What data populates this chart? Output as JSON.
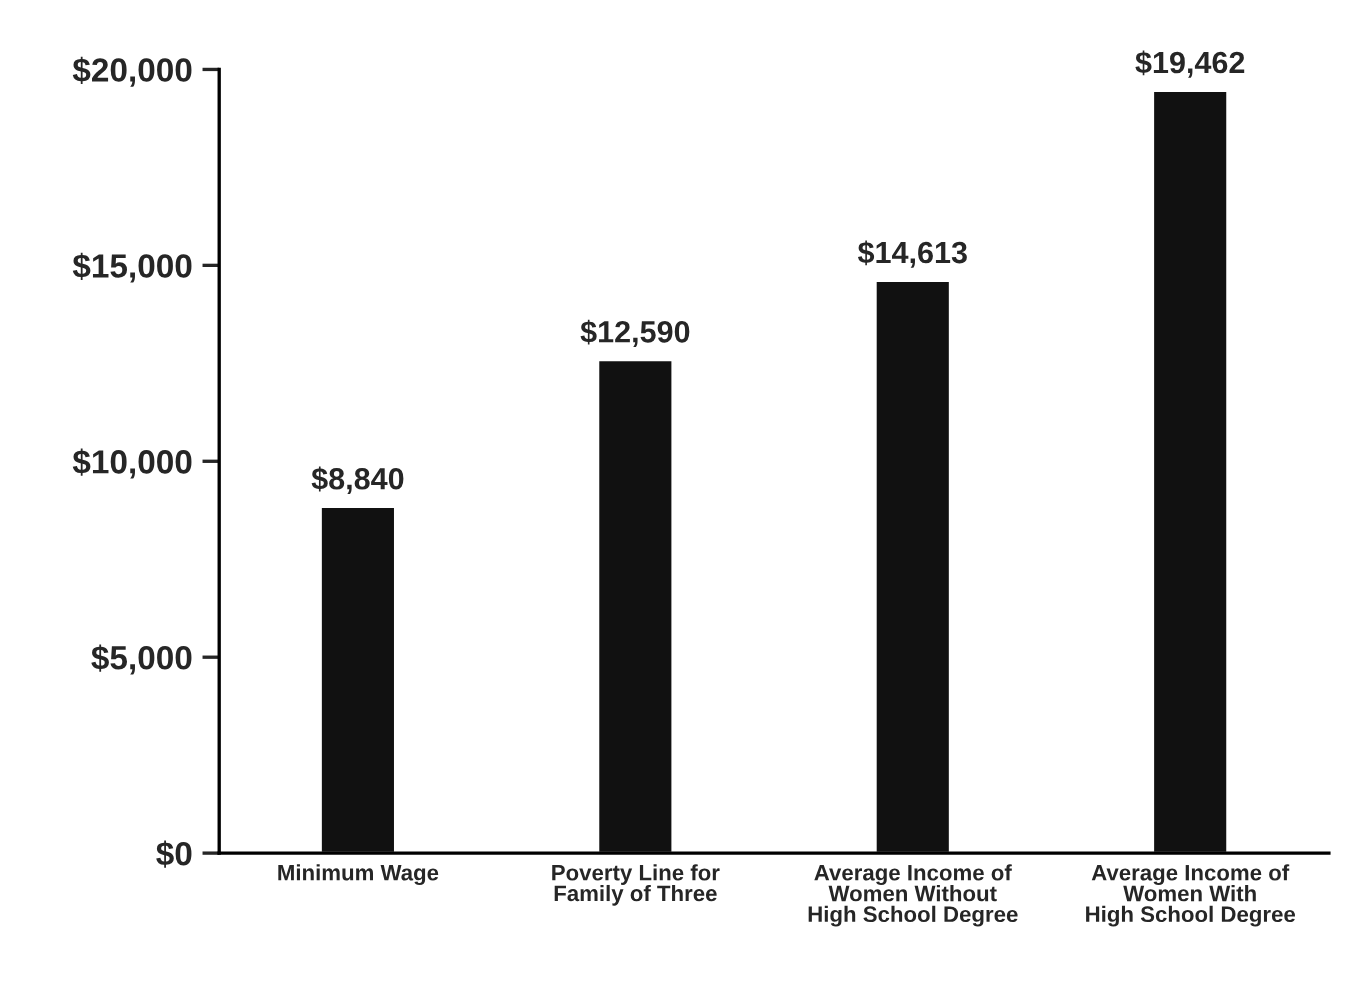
{
  "chart_data": {
    "type": "bar",
    "categories": [
      "Minimum Wage",
      "Poverty Line for\nFamily of Three",
      "Average Income of\nWomen Without\nHigh School Degree",
      "Average Income of\nWomen With\nHigh School Degree"
    ],
    "values": [
      8840,
      12590,
      14613,
      19462
    ],
    "value_labels": [
      "$8,840",
      "$12,590",
      "$14,613",
      "$19,462"
    ],
    "color": "#111111",
    "ylim": [
      0,
      20000
    ],
    "yticks": [
      {
        "value": 0,
        "label": "$0"
      },
      {
        "value": 5000,
        "label": "$5,000"
      },
      {
        "value": 10000,
        "label": "$10,000"
      },
      {
        "value": 15000,
        "label": "$15,000"
      },
      {
        "value": 20000,
        "label": "$20,000"
      }
    ],
    "grid": false,
    "legend": false
  }
}
